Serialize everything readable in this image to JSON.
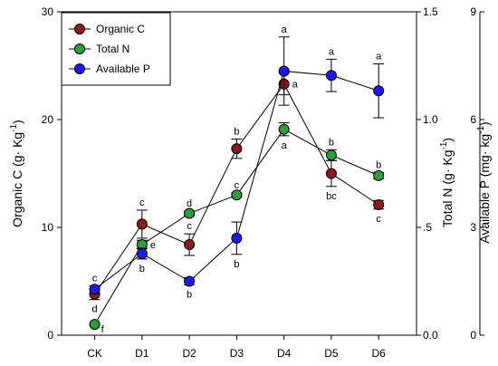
{
  "chart_data": {
    "type": "line",
    "categories": [
      "CK",
      "D1",
      "D2",
      "D3",
      "D4",
      "D5",
      "D6"
    ],
    "axes": {
      "left": {
        "label": "Organic C (g· Kg",
        "label_sup": "-1",
        "label_end": ")",
        "ylim": [
          0,
          30
        ],
        "ticks": [
          0,
          10,
          20,
          30
        ],
        "tick_labels": [
          "0",
          "10",
          "20",
          "30"
        ]
      },
      "right1": {
        "label": "Total N (g· Kg",
        "label_sup": "-1",
        "label_end": ")",
        "ylim": [
          0,
          1.5
        ],
        "ticks": [
          0,
          0.5,
          1.0,
          1.5
        ],
        "tick_labels": [
          "0.0",
          ".5",
          "1.0",
          "1.5"
        ]
      },
      "right2": {
        "label": "Available P (mg· kg",
        "label_sup": "-1",
        "label_end": ")",
        "ylim": [
          0,
          9
        ],
        "ticks": [
          0,
          3,
          6,
          9
        ],
        "tick_labels": [
          "0",
          "3",
          "6",
          "9"
        ]
      }
    },
    "series": [
      {
        "name": "Organic C",
        "axis": "left",
        "color": "#8b1a1a",
        "values": [
          3.8,
          10.3,
          8.4,
          17.3,
          23.3,
          15.0,
          12.1
        ],
        "errors": [
          0.5,
          1.3,
          1.0,
          0.9,
          1.0,
          1.2,
          0.4
        ],
        "letters": [
          "d",
          "c",
          "c",
          "b",
          "a",
          "bc",
          "c"
        ],
        "letter_pos": [
          "below",
          "above",
          "above",
          "above",
          "right",
          "below",
          "below"
        ]
      },
      {
        "name": "Total N",
        "axis": "right1",
        "color": "#2e9e3a",
        "values": [
          0.05,
          0.42,
          0.565,
          0.65,
          0.955,
          0.835,
          0.74
        ],
        "errors": [
          0,
          0.02,
          0.01,
          0.01,
          0.03,
          0.025,
          0.015
        ],
        "letters": [
          "f",
          "e",
          "d",
          "c",
          "a",
          "b",
          "b"
        ],
        "letter_pos": [
          "right-below",
          "right",
          "above",
          "above",
          "below",
          "above",
          "above"
        ]
      },
      {
        "name": "Available P",
        "axis": "right2",
        "color": "#1a1aee",
        "values": [
          1.28,
          2.27,
          1.5,
          2.7,
          7.35,
          7.23,
          6.8
        ],
        "errors": [
          0.1,
          0.15,
          0.1,
          0.45,
          0.95,
          0.45,
          0.75
        ],
        "letters": [
          "c",
          "b",
          "b",
          "b",
          "a",
          "a",
          "a"
        ],
        "letter_pos": [
          "above",
          "below",
          "below",
          "below",
          "above",
          "above",
          "above"
        ]
      }
    ],
    "legend": {
      "position": "top-left",
      "entries": [
        "Organic C",
        "Total N",
        "Available P"
      ]
    }
  }
}
